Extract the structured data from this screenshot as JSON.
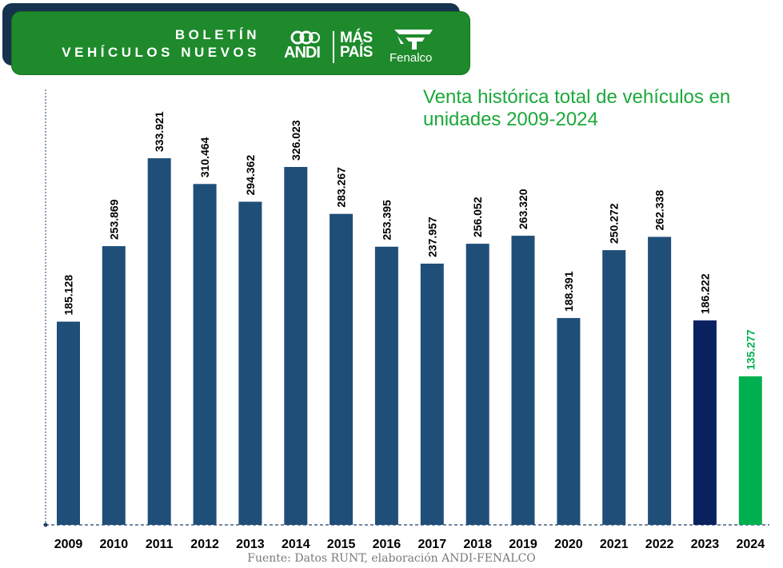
{
  "header": {
    "title_line1": "BOLETÍN",
    "title_line2": "VEHÍCULOS NUEVOS",
    "logos": {
      "andi": "ANDI",
      "maspais_line1": "MÁS",
      "maspais_line2": "PAÍS",
      "fenalco": "Fenalco"
    },
    "colors": {
      "banner": "#1e8a2c",
      "banner_shadow": "#16324f"
    }
  },
  "chart_data": {
    "type": "bar",
    "title": "Venta histórica total de vehículos en unidades 2009-2024",
    "categories": [
      "2009",
      "2010",
      "2011",
      "2012",
      "2013",
      "2014",
      "2015",
      "2016",
      "2017",
      "2018",
      "2019",
      "2020",
      "2021",
      "2022",
      "2023",
      "2024"
    ],
    "values": [
      185128,
      253869,
      333921,
      310464,
      294362,
      326023,
      283267,
      253395,
      237957,
      256052,
      263320,
      188391,
      250272,
      262338,
      186222,
      135277
    ],
    "value_labels": [
      "185.128",
      "253.869",
      "333.921",
      "310.464",
      "294.362",
      "326.023",
      "283.267",
      "253.395",
      "237.957",
      "256.052",
      "263.320",
      "188.391",
      "250.272",
      "262.338",
      "186.222",
      "135.277"
    ],
    "bar_colors": [
      "#1f4e79",
      "#1f4e79",
      "#1f4e79",
      "#1f4e79",
      "#1f4e79",
      "#1f4e79",
      "#1f4e79",
      "#1f4e79",
      "#1f4e79",
      "#1f4e79",
      "#1f4e79",
      "#1f4e79",
      "#1f4e79",
      "#1f4e79",
      "#0a2160",
      "#00b050"
    ],
    "label_colors": [
      "#000000",
      "#000000",
      "#000000",
      "#000000",
      "#000000",
      "#000000",
      "#000000",
      "#000000",
      "#000000",
      "#000000",
      "#000000",
      "#000000",
      "#000000",
      "#000000",
      "#000000",
      "#00b050"
    ],
    "xlabel": "",
    "ylabel": "",
    "ylim": [
      0,
      350000
    ],
    "grid": false
  },
  "source": "Fuente: Datos RUNT, elaboración ANDI-FENALCO"
}
